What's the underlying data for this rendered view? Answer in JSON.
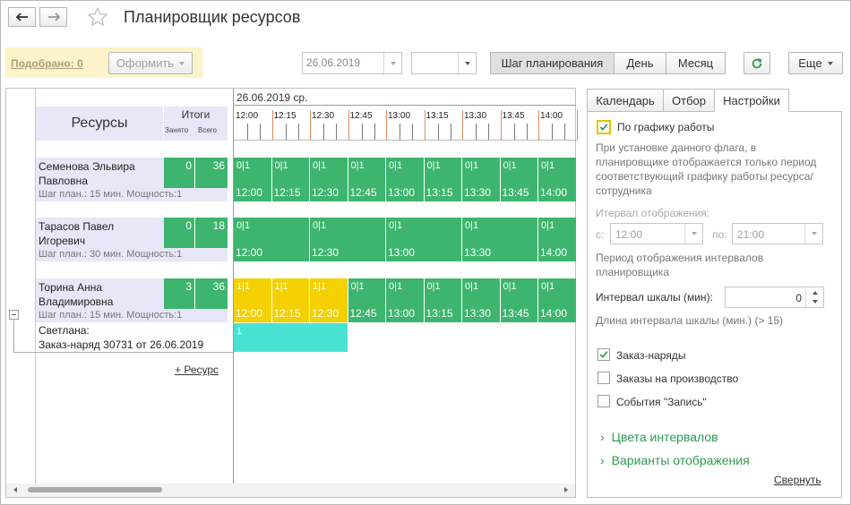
{
  "header": {
    "title": "Планировщик ресурсов",
    "back_icon": "arrow-left-icon",
    "forward_icon": "arrow-right-icon",
    "favorite_icon": "star-icon"
  },
  "toolbar": {
    "selected_link": "Подобрано: 0",
    "issue_button": "Оформить",
    "date_value": "26.06.2019",
    "period_value": "",
    "step_button": "Шаг планирования",
    "day_button": "День",
    "month_button": "Месяц",
    "refresh_icon": "refresh-icon",
    "more_button": "Еще"
  },
  "planner": {
    "resources_header": "Ресурсы",
    "totals_header": "Итоги",
    "busy_label": "Занято",
    "total_label": "Всего",
    "date_label": "26.06.2019 ср.",
    "times": [
      "12:00",
      "12:15",
      "12:30",
      "12:45",
      "13:00",
      "13:15",
      "13:30",
      "13:45",
      "14:00"
    ],
    "resources": [
      {
        "name": "Семенова Эльвира Павловна",
        "busy": "0",
        "total": "36",
        "info": "Шаг план.: 15 мин. Мощность:1",
        "slots": [
          {
            "top": "0|1",
            "time": "12:00",
            "color": "green"
          },
          {
            "top": "0|1",
            "time": "12:15",
            "color": "green"
          },
          {
            "top": "0|1",
            "time": "12:30",
            "color": "green"
          },
          {
            "top": "0|1",
            "time": "12:45",
            "color": "green"
          },
          {
            "top": "0|1",
            "time": "13:00",
            "color": "green"
          },
          {
            "top": "0|1",
            "time": "13:15",
            "color": "green"
          },
          {
            "top": "0|1",
            "time": "13:30",
            "color": "green"
          },
          {
            "top": "0|1",
            "time": "13:45",
            "color": "green"
          },
          {
            "top": "0|1",
            "time": "14:00",
            "color": "green"
          }
        ]
      },
      {
        "name": "Тарасов Павел Игоревич",
        "busy": "0",
        "total": "18",
        "info": "Шаг план.: 30 мин. Мощность:1",
        "slots": [
          {
            "top": "0|1",
            "time": "12:00",
            "color": "green"
          },
          {
            "top": "0|1",
            "time": "12:30",
            "color": "green"
          },
          {
            "top": "0|1",
            "time": "13:00",
            "color": "green"
          },
          {
            "top": "0|1",
            "time": "13:30",
            "color": "green"
          },
          {
            "top": "0|1",
            "time": "14:00",
            "color": "green"
          }
        ]
      },
      {
        "name": "Торина Анна Владимировна",
        "busy": "3",
        "total": "36",
        "info": "Шаг план.: 15 мин. Мощность:1",
        "slots": [
          {
            "top": "1|1",
            "time": "12:00",
            "color": "yellow"
          },
          {
            "top": "1|1",
            "time": "12:15",
            "color": "yellow"
          },
          {
            "top": "1|1",
            "time": "12:30",
            "color": "yellow"
          },
          {
            "top": "0|1",
            "time": "12:45",
            "color": "green"
          },
          {
            "top": "0|1",
            "time": "13:00",
            "color": "green"
          },
          {
            "top": "0|1",
            "time": "13:15",
            "color": "green"
          },
          {
            "top": "0|1",
            "time": "13:30",
            "color": "green"
          },
          {
            "top": "0|1",
            "time": "13:45",
            "color": "green"
          },
          {
            "top": "0|1",
            "time": "14:00",
            "color": "green"
          }
        ]
      }
    ],
    "sub_row": {
      "line1": "Светлана:",
      "line2": "Заказ-наряд 30731 от 26.06.2019",
      "value": "1"
    },
    "add_resource_link": "+ Ресурс"
  },
  "right_panel": {
    "tabs": [
      "Календарь",
      "Отбор",
      "Настройки"
    ],
    "active_tab": "Настройки",
    "schedule_check": "По графику работы",
    "schedule_hint": "При установке данного флага, в планировщике отображается только период соответствующий графику работы ресурса/сотрудника",
    "interval_label": "Итервал отображения:",
    "from_label": "с:",
    "from_value": "12:00",
    "to_label": "по:",
    "to_value": "21:00",
    "period_hint": "Период отображения интервалов планировщика",
    "scale_label": "Интервал шкалы (мин):",
    "scale_value": "0",
    "scale_hint": "Длина интервала шкалы (мин.) (> 15)",
    "checks": [
      {
        "label": "Заказ-наряды",
        "checked": true
      },
      {
        "label": "Заказы на производство",
        "checked": false
      },
      {
        "label": "События \"Запись\"",
        "checked": false
      }
    ],
    "colors_link": "Цвета интервалов",
    "variants_link": "Варианты отображения",
    "collapse_link": "Свернуть"
  }
}
